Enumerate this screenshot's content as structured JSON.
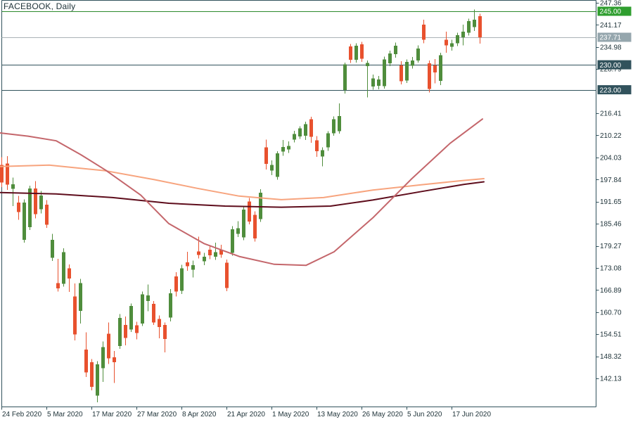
{
  "window": {
    "title": "FACEBOOK, Daily"
  },
  "colors": {
    "background": "#ffffff",
    "border": "#31525c",
    "text": "#20343a",
    "candle_up": "#4f8d3c",
    "candle_down": "#e8512e",
    "level_green_line": "#2c8a2c",
    "level_green_badge": "#2f9e2f",
    "current_price_line": "#aab2b6",
    "current_price_badge": "#95a6ad",
    "level_dark": "#31525c",
    "badge_text": "#ffffff",
    "ma_fast": "#c4666b",
    "ma_medium": "#f7a47e",
    "ma_slow": "#5e0d1c"
  },
  "chart_data": {
    "type": "candlestick",
    "title": "FACEBOOK, Daily",
    "symbol": "FACEBOOK",
    "timeframe": "Daily",
    "current_price": 237.71,
    "legend_position": "none",
    "grid": false,
    "y_axis": {
      "min": 142.13,
      "max": 247.36,
      "tick_step": 6.19,
      "tick_labels": [
        247.36,
        241.17,
        234.98,
        228.79,
        216.41,
        210.22,
        204.03,
        197.84,
        191.65,
        185.46,
        179.27,
        173.08,
        166.89,
        160.7,
        154.51,
        148.32,
        142.13
      ]
    },
    "x_axis": {
      "tick_labels": [
        {
          "candle_index": 0,
          "text": "24 Feb 2020"
        },
        {
          "candle_index": 8,
          "text": "5 Mar 2020"
        },
        {
          "candle_index": 16,
          "text": "17 Mar 2020"
        },
        {
          "candle_index": 24,
          "text": "27 Mar 2020"
        },
        {
          "candle_index": 32,
          "text": "8 Apr 2020"
        },
        {
          "candle_index": 40,
          "text": "21 Apr 2020"
        },
        {
          "candle_index": 48,
          "text": "1 May 2020"
        },
        {
          "candle_index": 56,
          "text": "13 May 2020"
        },
        {
          "candle_index": 64,
          "text": "26 May 2020"
        },
        {
          "candle_index": 72,
          "text": "5 Jun 2020"
        },
        {
          "candle_index": 80,
          "text": "17 Jun 2020"
        }
      ]
    },
    "levels": [
      {
        "price": 245.0,
        "text": "245.00",
        "style": "green"
      },
      {
        "price": 230.0,
        "text": "230.00",
        "style": "dark"
      },
      {
        "price": 223.0,
        "text": "223.00",
        "style": "dark"
      }
    ],
    "current_price_marker": {
      "price": 237.71,
      "text": "237.71",
      "style": "current"
    },
    "candles": [
      {
        "date": "2020-02-24",
        "o": 201.9,
        "h": 204.1,
        "l": 195.7,
        "c": 197.0
      },
      {
        "date": "2020-02-25",
        "o": 202.3,
        "h": 204.4,
        "l": 194.9,
        "c": 196.4
      },
      {
        "date": "2020-02-26",
        "o": 195.2,
        "h": 198.4,
        "l": 190.4,
        "c": 196.5
      },
      {
        "date": "2020-02-27",
        "o": 191.4,
        "h": 193.3,
        "l": 186.6,
        "c": 188.7
      },
      {
        "date": "2020-02-28",
        "o": 181.0,
        "h": 192.3,
        "l": 180.2,
        "c": 191.4
      },
      {
        "date": "2020-03-02",
        "o": 184.5,
        "h": 196.1,
        "l": 183.7,
        "c": 195.3
      },
      {
        "date": "2020-03-03",
        "o": 195.3,
        "h": 197.4,
        "l": 187.0,
        "c": 188.1
      },
      {
        "date": "2020-03-04",
        "o": 189.5,
        "h": 194.6,
        "l": 188.3,
        "c": 193.4
      },
      {
        "date": "2020-03-05",
        "o": 190.8,
        "h": 192.1,
        "l": 184.3,
        "c": 185.2
      },
      {
        "date": "2020-03-06",
        "o": 175.9,
        "h": 182.6,
        "l": 175.0,
        "c": 181.0
      },
      {
        "date": "2020-03-09",
        "o": 168.8,
        "h": 175.6,
        "l": 166.5,
        "c": 167.4
      },
      {
        "date": "2020-03-10",
        "o": 168.6,
        "h": 178.6,
        "l": 167.8,
        "c": 177.5
      },
      {
        "date": "2020-03-11",
        "o": 173.0,
        "h": 174.1,
        "l": 166.4,
        "c": 170.1
      },
      {
        "date": "2020-03-12",
        "o": 165.1,
        "h": 168.7,
        "l": 152.8,
        "c": 154.4
      },
      {
        "date": "2020-03-13",
        "o": 161.1,
        "h": 170.0,
        "l": 157.5,
        "c": 168.8
      },
      {
        "date": "2020-03-16",
        "o": 150.2,
        "h": 155.0,
        "l": 142.5,
        "c": 143.8
      },
      {
        "date": "2020-03-17",
        "o": 146.7,
        "h": 147.5,
        "l": 138.8,
        "c": 139.8
      },
      {
        "date": "2020-03-18",
        "o": 137.3,
        "h": 147.0,
        "l": 135.4,
        "c": 146.1
      },
      {
        "date": "2020-03-19",
        "o": 145.0,
        "h": 152.5,
        "l": 141.1,
        "c": 150.9
      },
      {
        "date": "2020-03-20",
        "o": 154.6,
        "h": 157.8,
        "l": 146.2,
        "c": 147.7
      },
      {
        "date": "2020-03-23",
        "o": 148.0,
        "h": 149.8,
        "l": 140.8,
        "c": 146.7
      },
      {
        "date": "2020-03-24",
        "o": 151.2,
        "h": 160.2,
        "l": 150.4,
        "c": 159.1
      },
      {
        "date": "2020-03-25",
        "o": 157.1,
        "h": 159.5,
        "l": 151.4,
        "c": 153.5
      },
      {
        "date": "2020-03-26",
        "o": 155.8,
        "h": 163.1,
        "l": 155.1,
        "c": 162.4
      },
      {
        "date": "2020-03-27",
        "o": 157.0,
        "h": 158.0,
        "l": 153.1,
        "c": 154.8
      },
      {
        "date": "2020-03-30",
        "o": 157.5,
        "h": 166.5,
        "l": 156.8,
        "c": 165.7
      },
      {
        "date": "2020-03-31",
        "o": 163.8,
        "h": 168.4,
        "l": 160.9,
        "c": 165.4
      },
      {
        "date": "2020-04-01",
        "o": 163.0,
        "h": 163.8,
        "l": 157.1,
        "c": 157.8
      },
      {
        "date": "2020-04-02",
        "o": 158.8,
        "h": 159.8,
        "l": 153.4,
        "c": 156.5
      },
      {
        "date": "2020-04-03",
        "o": 157.1,
        "h": 157.8,
        "l": 149.4,
        "c": 153.2
      },
      {
        "date": "2020-04-06",
        "o": 159.2,
        "h": 167.2,
        "l": 158.1,
        "c": 166.0
      },
      {
        "date": "2020-04-07",
        "o": 170.7,
        "h": 171.9,
        "l": 165.1,
        "c": 166.5
      },
      {
        "date": "2020-04-08",
        "o": 166.7,
        "h": 174.0,
        "l": 165.8,
        "c": 173.0
      },
      {
        "date": "2020-04-09",
        "o": 174.6,
        "h": 177.6,
        "l": 172.3,
        "c": 173.6
      },
      {
        "date": "2020-04-13",
        "o": 172.6,
        "h": 175.1,
        "l": 170.4,
        "c": 173.9
      },
      {
        "date": "2020-04-14",
        "o": 177.7,
        "h": 181.8,
        "l": 175.7,
        "c": 176.7
      },
      {
        "date": "2020-04-15",
        "o": 174.9,
        "h": 177.3,
        "l": 173.9,
        "c": 176.2
      },
      {
        "date": "2020-04-16",
        "o": 178.2,
        "h": 179.3,
        "l": 175.5,
        "c": 176.6
      },
      {
        "date": "2020-04-17",
        "o": 176.2,
        "h": 180.2,
        "l": 175.3,
        "c": 177.5
      },
      {
        "date": "2020-04-20",
        "o": 178.2,
        "h": 179.6,
        "l": 175.9,
        "c": 176.8
      },
      {
        "date": "2020-04-21",
        "o": 174.5,
        "h": 175.4,
        "l": 166.6,
        "c": 167.4
      },
      {
        "date": "2020-04-22",
        "o": 177.3,
        "h": 184.8,
        "l": 176.5,
        "c": 183.9
      },
      {
        "date": "2020-04-23",
        "o": 182.6,
        "h": 186.2,
        "l": 181.7,
        "c": 184.2
      },
      {
        "date": "2020-04-24",
        "o": 181.6,
        "h": 190.3,
        "l": 180.9,
        "c": 189.4
      },
      {
        "date": "2020-04-27",
        "o": 191.7,
        "h": 192.7,
        "l": 185.3,
        "c": 186.1
      },
      {
        "date": "2020-04-28",
        "o": 187.9,
        "h": 188.9,
        "l": 180.5,
        "c": 181.3
      },
      {
        "date": "2020-04-29",
        "o": 186.8,
        "h": 195.1,
        "l": 186.0,
        "c": 194.2
      },
      {
        "date": "2020-04-30",
        "o": 206.9,
        "h": 209.0,
        "l": 200.7,
        "c": 202.2
      },
      {
        "date": "2020-05-01",
        "o": 200.4,
        "h": 203.2,
        "l": 199.1,
        "c": 201.9
      },
      {
        "date": "2020-05-04",
        "o": 198.6,
        "h": 205.8,
        "l": 197.8,
        "c": 205.2
      },
      {
        "date": "2020-05-05",
        "o": 205.7,
        "h": 208.9,
        "l": 204.5,
        "c": 207.0
      },
      {
        "date": "2020-05-06",
        "o": 206.3,
        "h": 208.5,
        "l": 205.3,
        "c": 207.3
      },
      {
        "date": "2020-05-07",
        "o": 209.0,
        "h": 211.5,
        "l": 208.2,
        "c": 210.6
      },
      {
        "date": "2020-05-08",
        "o": 209.9,
        "h": 212.8,
        "l": 209.2,
        "c": 212.2
      },
      {
        "date": "2020-05-11",
        "o": 210.1,
        "h": 214.1,
        "l": 208.9,
        "c": 213.4
      },
      {
        "date": "2020-05-12",
        "o": 214.7,
        "h": 215.4,
        "l": 208.1,
        "c": 209.8
      },
      {
        "date": "2020-05-13",
        "o": 208.8,
        "h": 210.0,
        "l": 204.2,
        "c": 205.8
      },
      {
        "date": "2020-05-14",
        "o": 204.3,
        "h": 206.9,
        "l": 201.5,
        "c": 206.1
      },
      {
        "date": "2020-05-15",
        "o": 206.9,
        "h": 211.4,
        "l": 205.9,
        "c": 210.8
      },
      {
        "date": "2020-05-18",
        "o": 210.8,
        "h": 215.5,
        "l": 210.1,
        "c": 214.7
      },
      {
        "date": "2020-05-19",
        "o": 211.4,
        "h": 219.2,
        "l": 210.7,
        "c": 215.6
      },
      {
        "date": "2020-05-20",
        "o": 222.9,
        "h": 230.6,
        "l": 221.9,
        "c": 230.1
      },
      {
        "date": "2020-05-21",
        "o": 235.1,
        "h": 235.8,
        "l": 230.5,
        "c": 231.4
      },
      {
        "date": "2020-05-22",
        "o": 231.4,
        "h": 236.0,
        "l": 230.6,
        "c": 235.3
      },
      {
        "date": "2020-05-26",
        "o": 235.7,
        "h": 236.4,
        "l": 230.8,
        "c": 231.7
      },
      {
        "date": "2020-05-27",
        "o": 229.6,
        "h": 231.2,
        "l": 220.9,
        "c": 230.5
      },
      {
        "date": "2020-05-28",
        "o": 223.9,
        "h": 227.3,
        "l": 223.0,
        "c": 226.2
      },
      {
        "date": "2020-05-29",
        "o": 224.1,
        "h": 226.9,
        "l": 223.1,
        "c": 225.9
      },
      {
        "date": "2020-06-01",
        "o": 224.0,
        "h": 232.3,
        "l": 223.3,
        "c": 231.5
      },
      {
        "date": "2020-06-02",
        "o": 230.4,
        "h": 234.0,
        "l": 229.6,
        "c": 233.2
      },
      {
        "date": "2020-06-03",
        "o": 233.0,
        "h": 236.2,
        "l": 232.0,
        "c": 235.3
      },
      {
        "date": "2020-06-04",
        "o": 229.8,
        "h": 231.0,
        "l": 224.5,
        "c": 225.4
      },
      {
        "date": "2020-06-05",
        "o": 225.6,
        "h": 231.5,
        "l": 224.9,
        "c": 230.8
      },
      {
        "date": "2020-06-08",
        "o": 229.7,
        "h": 232.2,
        "l": 228.9,
        "c": 231.2
      },
      {
        "date": "2020-06-09",
        "o": 231.2,
        "h": 235.4,
        "l": 230.6,
        "c": 234.6
      },
      {
        "date": "2020-06-10",
        "o": 241.3,
        "h": 242.6,
        "l": 236.0,
        "c": 237.0
      },
      {
        "date": "2020-06-11",
        "o": 230.4,
        "h": 231.2,
        "l": 222.2,
        "c": 223.2
      },
      {
        "date": "2020-06-12",
        "o": 229.8,
        "h": 231.6,
        "l": 224.8,
        "c": 227.8
      },
      {
        "date": "2020-06-15",
        "o": 225.5,
        "h": 233.4,
        "l": 224.3,
        "c": 232.7
      },
      {
        "date": "2020-06-16",
        "o": 237.0,
        "h": 239.3,
        "l": 233.4,
        "c": 235.4
      },
      {
        "date": "2020-06-17",
        "o": 235.0,
        "h": 237.0,
        "l": 234.0,
        "c": 236.0
      },
      {
        "date": "2020-06-18",
        "o": 236.0,
        "h": 239.0,
        "l": 235.2,
        "c": 238.3
      },
      {
        "date": "2020-06-19",
        "o": 237.7,
        "h": 241.3,
        "l": 235.4,
        "c": 239.3
      },
      {
        "date": "2020-06-22",
        "o": 239.0,
        "h": 242.9,
        "l": 238.2,
        "c": 242.2
      },
      {
        "date": "2020-06-23",
        "o": 240.6,
        "h": 245.5,
        "l": 239.5,
        "c": 242.6
      },
      {
        "date": "2020-06-24",
        "o": 243.6,
        "h": 244.3,
        "l": 235.9,
        "c": 237.71
      }
    ],
    "moving_averages": [
      {
        "name": "ma-slow",
        "color_key": "ma_slow",
        "width": 2,
        "points": [
          [
            0,
            194.2
          ],
          [
            80,
            193.8
          ],
          [
            160,
            192.8
          ],
          [
            240,
            191.2
          ],
          [
            320,
            190.4
          ],
          [
            400,
            190.1
          ],
          [
            470,
            190.4
          ],
          [
            530,
            192.1
          ],
          [
            600,
            194.5
          ],
          [
            660,
            196.5
          ],
          [
            688,
            197.2
          ]
        ]
      },
      {
        "name": "ma-medium",
        "color_key": "ma_medium",
        "width": 2,
        "points": [
          [
            0,
            201.5
          ],
          [
            70,
            201.9
          ],
          [
            150,
            200.3
          ],
          [
            220,
            197.8
          ],
          [
            280,
            195.4
          ],
          [
            340,
            193.2
          ],
          [
            400,
            192.2
          ],
          [
            460,
            192.8
          ],
          [
            530,
            194.9
          ],
          [
            600,
            196.4
          ],
          [
            660,
            197.6
          ],
          [
            688,
            198.1
          ]
        ]
      },
      {
        "name": "ma-fast",
        "color_key": "ma_fast",
        "width": 2,
        "points": [
          [
            0,
            210.9
          ],
          [
            40,
            210.0
          ],
          [
            80,
            208.7
          ],
          [
            115,
            204.8
          ],
          [
            150,
            200.5
          ],
          [
            200,
            193.5
          ],
          [
            240,
            185.5
          ],
          [
            290,
            179.9
          ],
          [
            340,
            176.3
          ],
          [
            390,
            174.1
          ],
          [
            435,
            173.8
          ],
          [
            475,
            177.6
          ],
          [
            530,
            187.1
          ],
          [
            585,
            198.0
          ],
          [
            640,
            208.0
          ],
          [
            686,
            214.8
          ]
        ]
      }
    ]
  }
}
